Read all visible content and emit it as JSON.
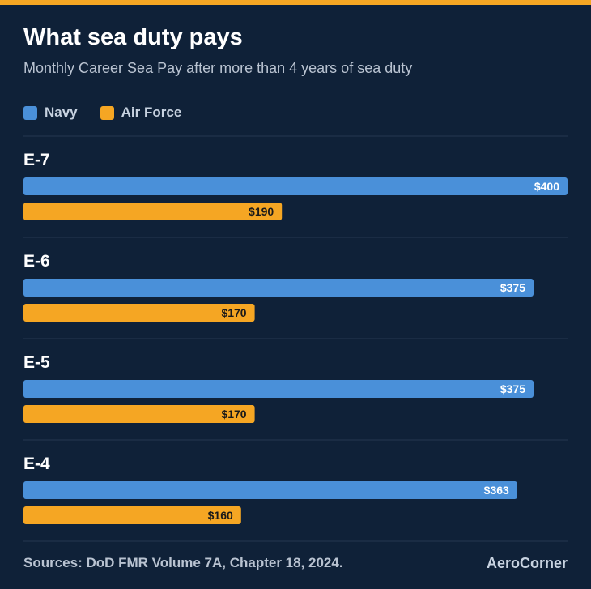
{
  "title": "What sea duty pays",
  "subtitle": "Monthly Career Sea Pay after more than 4 years of sea duty",
  "legend": [
    {
      "label": "Navy",
      "color": "#4a90d9"
    },
    {
      "label": "Air Force",
      "color": "#f5a623"
    }
  ],
  "footer": {
    "source": "Sources: DoD FMR Volume 7A, Chapter 18, 2024.",
    "brand": "AeroCorner"
  },
  "chart_data": {
    "type": "bar",
    "orientation": "horizontal",
    "categories": [
      "E-7",
      "E-6",
      "E-5",
      "E-4"
    ],
    "series": [
      {
        "name": "Navy",
        "color": "#4a90d9",
        "values": [
          400,
          375,
          375,
          363
        ],
        "labels": [
          "$400",
          "$375",
          "$375",
          "$363"
        ]
      },
      {
        "name": "Air Force",
        "color": "#f5a623",
        "values": [
          190,
          170,
          170,
          160
        ],
        "labels": [
          "$190",
          "$170",
          "$170",
          "$160"
        ]
      }
    ],
    "xlim": [
      0,
      400
    ],
    "grid": false,
    "legend_position": "top-left"
  }
}
